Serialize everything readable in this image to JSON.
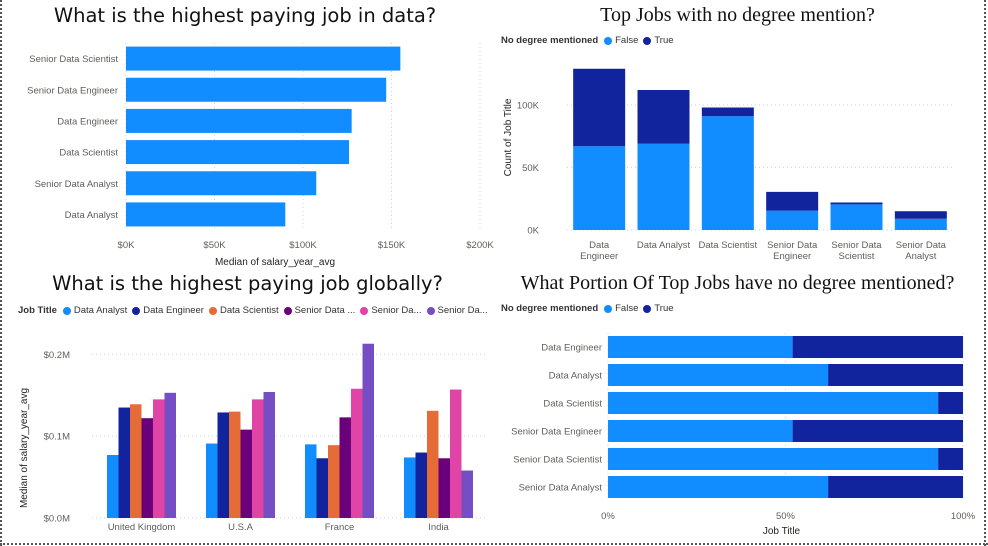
{
  "colors": {
    "light": "#118dff",
    "dark": "#12239e",
    "orange": "#e66c37",
    "purple": "#6b007b",
    "pink": "#e044a7",
    "violet": "#744ec2",
    "grid": "#d0d0d0"
  },
  "chart_data": [
    {
      "type": "bar",
      "orientation": "horizontal",
      "title": "What is the highest paying job in data?",
      "categories": [
        "Senior Data Scientist",
        "Senior Data Engineer",
        "Data Engineer",
        "Data Scientist",
        "Senior Data Analyst",
        "Data Analyst"
      ],
      "values": [
        155000,
        147000,
        127500,
        126000,
        107500,
        90000
      ],
      "xlabel": "Median of salary_year_avg",
      "ylabel": "",
      "xlim": [
        0,
        200000
      ],
      "ticks": [
        0,
        50000,
        100000,
        150000,
        200000
      ],
      "tick_labels": [
        "$0K",
        "$50K",
        "$100K",
        "$150K",
        "$200K"
      ],
      "grid": true
    },
    {
      "type": "bar",
      "stacked": true,
      "title": "Top Jobs with no degree mention?",
      "legend_title": "No degree mentioned",
      "legend_position": "top-left",
      "categories": [
        [
          "Data",
          "Engineer"
        ],
        [
          "Data Analyst"
        ],
        [
          "Data Scientist"
        ],
        [
          "Senior Data",
          "Engineer"
        ],
        [
          "Senior Data",
          "Scientist"
        ],
        [
          "Senior Data",
          "Analyst"
        ]
      ],
      "series": [
        {
          "name": "False",
          "values": [
            67000,
            69000,
            91000,
            15500,
            20500,
            9000
          ]
        },
        {
          "name": "True",
          "values": [
            62000,
            43000,
            7000,
            15000,
            1500,
            6000
          ]
        }
      ],
      "xlabel": "",
      "ylabel": "Count of Job Title",
      "ylim": [
        0,
        140000
      ],
      "ticks": [
        0,
        50000,
        100000
      ],
      "tick_labels": [
        "0K",
        "50K",
        "100K"
      ],
      "grid": true
    },
    {
      "type": "bar",
      "grouped": true,
      "title": "What is the highest paying job globally?",
      "legend_title": "Job Title",
      "legend_position": "top-left",
      "categories": [
        "United Kingdom",
        "U.S.A",
        "France",
        "India"
      ],
      "series": [
        {
          "name": "Data Analyst",
          "values": [
            77000,
            91000,
            90000,
            74000
          ]
        },
        {
          "name": "Data Engineer",
          "values": [
            135000,
            129000,
            73000,
            80000
          ]
        },
        {
          "name": "Data Scientist",
          "values": [
            139000,
            130000,
            89000,
            131000
          ]
        },
        {
          "name": "Senior Data ...",
          "values": [
            122000,
            108000,
            123000,
            73000
          ]
        },
        {
          "name": "Senior Da...",
          "values": [
            145000,
            145000,
            158000,
            157000
          ]
        },
        {
          "name": "Senior Da...",
          "values": [
            153000,
            154000,
            213000,
            58000
          ]
        }
      ],
      "xlabel": "",
      "ylabel": "Median of salary_year_avg",
      "ylim": [
        0,
        220000
      ],
      "ticks": [
        0,
        100000,
        200000
      ],
      "tick_labels": [
        "$0.0M",
        "$0.1M",
        "$0.2M"
      ],
      "grid": true
    },
    {
      "type": "bar",
      "orientation": "horizontal",
      "stacked": true,
      "percent": true,
      "title": "What Portion Of Top Jobs have no degree mentioned?",
      "legend_title": "No degree mentioned",
      "legend_position": "top-left",
      "categories": [
        "Data Engineer",
        "Data Analyst",
        "Data Scientist",
        "Senior Data Engineer",
        "Senior Data Scientist",
        "Senior Data Analyst"
      ],
      "series": [
        {
          "name": "False",
          "values": [
            52,
            62,
            93,
            52,
            93,
            62
          ]
        },
        {
          "name": "True",
          "values": [
            48,
            38,
            7,
            48,
            7,
            38
          ]
        }
      ],
      "xlabel": "Job Title",
      "ylabel": "",
      "xlim": [
        0,
        100
      ],
      "ticks": [
        0,
        50,
        100
      ],
      "tick_labels": [
        "0%",
        "50%",
        "100%"
      ],
      "grid": true
    }
  ]
}
